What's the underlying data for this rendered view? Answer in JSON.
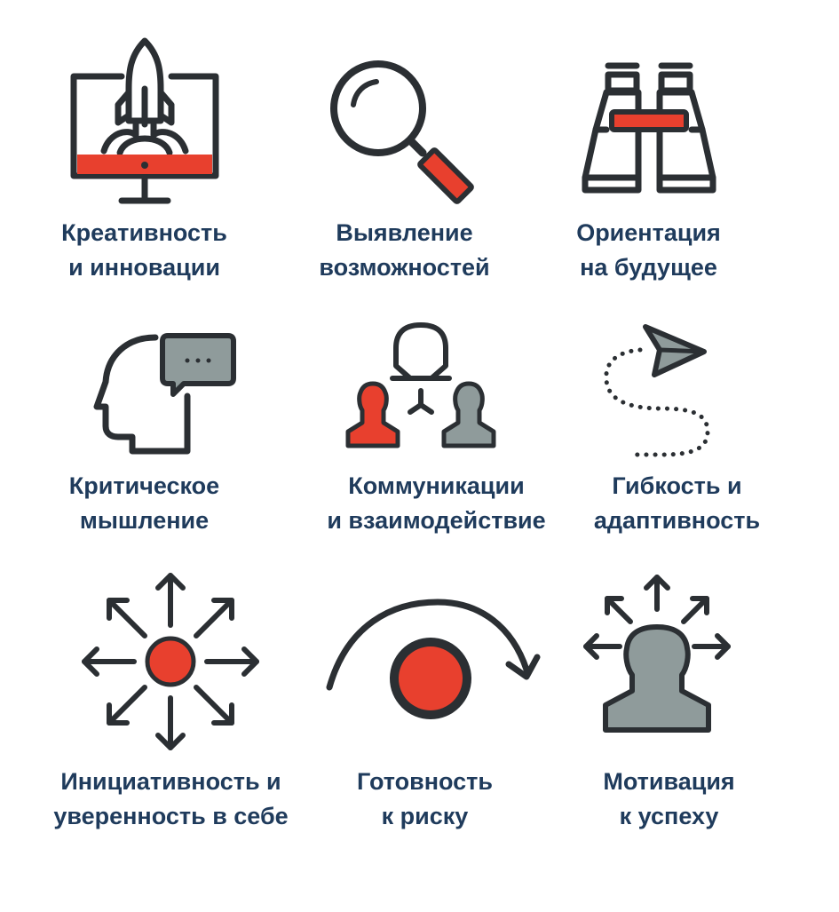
{
  "colors": {
    "dark": "#2b2f33",
    "accent": "#e8402e",
    "gray": "#8f9b9b",
    "text": "#1f3b5c",
    "background": "#ffffff"
  },
  "items": [
    {
      "icon": "rocket-monitor-icon",
      "line1": "Креативность",
      "line2": "и инновации"
    },
    {
      "icon": "magnifier-icon",
      "line1": "Выявление",
      "line2": "возможностей"
    },
    {
      "icon": "binoculars-icon",
      "line1": "Ориентация",
      "line2": "на будущее"
    },
    {
      "icon": "head-speech-bubble-icon",
      "line1": "Критическое",
      "line2": "мышление"
    },
    {
      "icon": "people-network-icon",
      "line1": "Коммуникации",
      "line2": "и взаимодействие"
    },
    {
      "icon": "paper-plane-path-icon",
      "line1": "Гибкость и",
      "line2": "адаптивность"
    },
    {
      "icon": "radiating-arrows-icon",
      "line1": "Инициативность и",
      "line2": "уверенность в себе"
    },
    {
      "icon": "circle-arc-arrow-icon",
      "line1": "Готовность",
      "line2": "к риску"
    },
    {
      "icon": "person-arrows-icon",
      "line1": "Мотивация",
      "line2": "к успеху"
    }
  ]
}
